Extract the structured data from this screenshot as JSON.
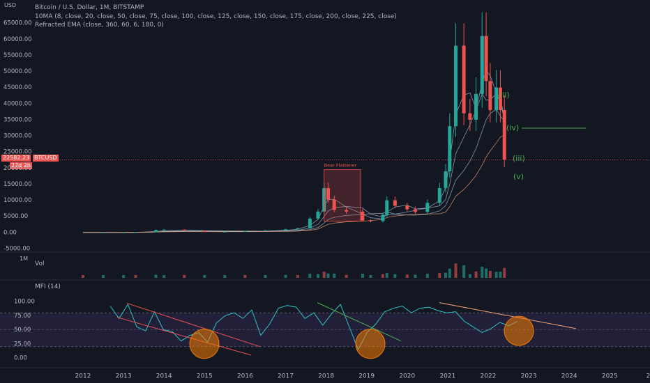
{
  "header": {
    "currency": "USD",
    "title": "Bitcoin / U.S. Dollar, 1M, BITSTAMP",
    "indicator1": "10MA (8, close, 20, close, 50, close, 75, close, 100, close, 125, close, 150, close, 175, close, 200, close, 225, close)",
    "indicator2": "Refracted EMA (close, 360, 60, 6, 180, 0)"
  },
  "price_badge": {
    "price": "22582.23",
    "countdown": "27d 2h",
    "symbol": "BTCUSD"
  },
  "annotation": "Bear Flattener",
  "wave_labels": [
    "(ii)",
    "(iv)",
    "(iii)",
    "(v)"
  ],
  "volume": {
    "label": "Vol",
    "axis": "1M"
  },
  "mfi": {
    "label": "MFI (14)",
    "ticks": [
      "100.00",
      "75.00",
      "50.00",
      "25.00",
      "0.00"
    ]
  },
  "colors": {
    "bg": "#131722",
    "up": "#26a69a",
    "down": "#ef5350",
    "mfi": "#2ec4c4",
    "band": "#7e57c2",
    "ma": "#9bb9c9",
    "ema": "#f0a070"
  },
  "chart_data": {
    "type": "candlestick",
    "price_ticks": [
      "65000.00",
      "60000.00",
      "55000.00",
      "50000.00",
      "45000.00",
      "40000.00",
      "35000.00",
      "30000.00",
      "25000.00",
      "20000.00",
      "15000.00",
      "10000.00",
      "5000.00",
      "0.00",
      "-5000.00"
    ],
    "price_ylim": [
      -5000,
      70000
    ],
    "x_ticks": [
      "2012",
      "2013",
      "2014",
      "2015",
      "2016",
      "2017",
      "2018",
      "2019",
      "2020",
      "2021",
      "2022",
      "2023",
      "2024",
      "2025",
      "20"
    ],
    "series": [
      {
        "name": "price",
        "x": [
          2012.0,
          2012.5,
          2013.0,
          2013.3,
          2013.8,
          2014.0,
          2014.5,
          2015.0,
          2015.5,
          2016.0,
          2016.5,
          2017.0,
          2017.3,
          2017.6,
          2017.8,
          2017.95,
          2018.05,
          2018.2,
          2018.5,
          2018.9,
          2019.1,
          2019.4,
          2019.5,
          2019.7,
          2020.0,
          2020.2,
          2020.5,
          2020.8,
          2020.95,
          2021.05,
          2021.2,
          2021.4,
          2021.55,
          2021.7,
          2021.85,
          2021.95,
          2022.05,
          2022.2,
          2022.3,
          2022.4
        ],
        "values": [
          5,
          10,
          20,
          100,
          800,
          900,
          600,
          250,
          250,
          400,
          650,
          1000,
          1300,
          4300,
          6500,
          13800,
          10200,
          7000,
          6500,
          3700,
          3500,
          5500,
          10000,
          8300,
          7200,
          6400,
          9200,
          13800,
          19000,
          33000,
          58000,
          37000,
          35000,
          43000,
          61000,
          47000,
          38000,
          45000,
          38000,
          22582
        ]
      }
    ],
    "mfi_values": [
      92,
      70,
      95,
      55,
      48,
      82,
      50,
      47,
      30,
      40,
      45,
      28,
      62,
      75,
      80,
      70,
      85,
      40,
      60,
      88,
      93,
      90,
      70,
      80,
      58,
      78,
      95,
      55,
      15,
      45,
      60,
      82,
      88,
      92,
      80,
      88,
      90,
      84,
      80,
      82,
      65,
      55,
      45,
      52,
      63,
      57,
      65
    ]
  }
}
